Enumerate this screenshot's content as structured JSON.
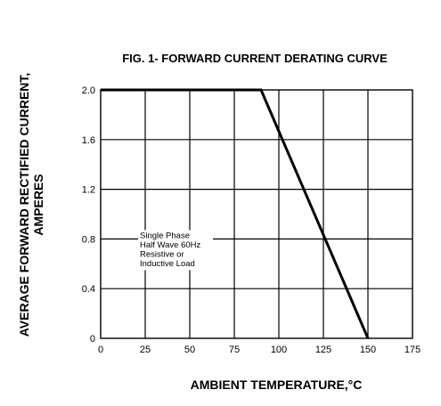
{
  "chart_data": {
    "type": "line",
    "title": "FIG. 1- FORWARD CURRENT DERATING CURVE",
    "xlabel": "AMBIENT TEMPERATURE,°C",
    "ylabel": [
      "AVERAGE FORWARD RECTIFIED CURRENT,",
      "AMPERES"
    ],
    "xlim": [
      0,
      175
    ],
    "ylim": [
      0,
      2.0
    ],
    "x_ticks": [
      0,
      25,
      50,
      75,
      100,
      125,
      150,
      175
    ],
    "y_ticks": [
      0,
      0.4,
      0.8,
      1.2,
      1.6,
      2.0
    ],
    "x_tick_labels": [
      "0",
      "25",
      "50",
      "75",
      "100",
      "125",
      "150",
      "175"
    ],
    "y_tick_labels": [
      "0",
      "0.4",
      "0.8",
      "1.2",
      "1.6",
      "2.0"
    ],
    "grid": true,
    "legend": "none",
    "series": [
      {
        "x": [
          0,
          90,
          150
        ],
        "y": [
          2.0,
          2.0,
          0
        ],
        "color": "#000000"
      }
    ],
    "annotation": {
      "lines": [
        "Single Phase",
        "Half Wave 60Hz",
        "Resistive or",
        "Inductive Load"
      ],
      "anchor_x": 25,
      "anchor_y": 0.8
    }
  }
}
